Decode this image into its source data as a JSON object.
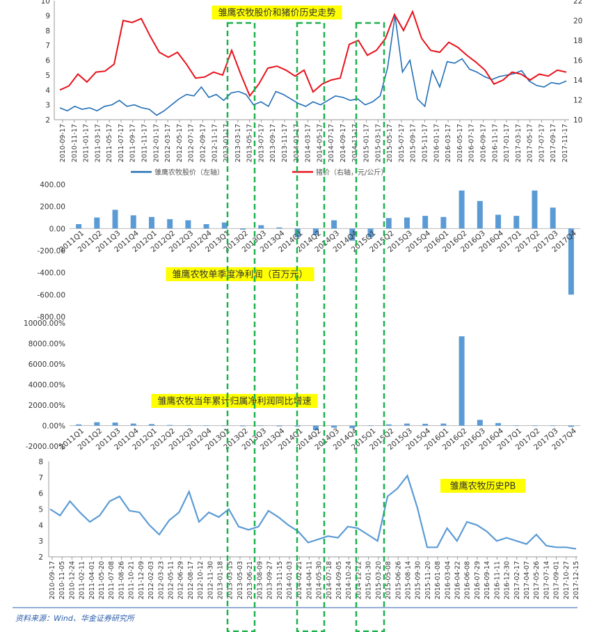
{
  "chart_data": [
    {
      "type": "line",
      "title": "雏鹰农牧股价和猪价历史走势",
      "ylim_left": [
        2,
        10
      ],
      "yticks_left": [
        2,
        3,
        4,
        5,
        6,
        7,
        8,
        9,
        10
      ],
      "ylim_right": [
        10,
        22
      ],
      "yticks_right": [
        10,
        12,
        14,
        16,
        18,
        20,
        22
      ],
      "xtick_labels": [
        "2010-09-17",
        "2010-11-17",
        "2011-01-17",
        "2011-03-17",
        "2011-05-17",
        "2011-07-17",
        "2011-09-17",
        "2011-11-17",
        "2012-01-17",
        "2012-03-17",
        "2012-05-17",
        "2012-07-17",
        "2012-09-17",
        "2012-11-17",
        "2013-01-17",
        "2013-03-17",
        "2013-05-17",
        "2013-07-17",
        "2013-09-17",
        "2013-11-17",
        "2014-01-17",
        "2014-03-17",
        "2014-05-17",
        "2014-07-17",
        "2014-09-17",
        "2014-11-17",
        "2015-01-17",
        "2015-03-17",
        "2015-05-17",
        "2015-07-17",
        "2015-09-17",
        "2015-11-17",
        "2016-01-17",
        "2016-03-17",
        "2016-05-17",
        "2016-07-17",
        "2016-09-17",
        "2016-11-17",
        "2017-01-17",
        "2017-03-17",
        "2017-05-17",
        "2017-07-17",
        "2017-09-17",
        "2017-11-17"
      ],
      "series": [
        {
          "name": "雏鹰农牧股价（左轴）",
          "axis": "left",
          "color": "#1f6db5",
          "values": [
            2.8,
            2.6,
            2.9,
            2.7,
            2.8,
            2.6,
            2.9,
            3.0,
            3.3,
            2.9,
            3.0,
            2.8,
            2.7,
            2.3,
            2.6,
            3.0,
            3.4,
            3.7,
            3.6,
            4.2,
            3.5,
            3.7,
            3.3,
            3.8,
            3.9,
            3.7,
            3.0,
            3.2,
            2.9,
            3.9,
            3.7,
            3.4,
            3.1,
            2.9,
            3.2,
            3.0,
            3.3,
            3.6,
            3.5,
            3.3,
            3.4,
            3.0,
            3.2,
            3.6,
            5.5,
            9.0,
            5.2,
            6.0,
            3.4,
            2.9,
            5.3,
            4.2,
            5.9,
            5.8,
            6.1,
            5.4,
            5.2,
            4.9,
            4.7,
            4.9,
            5.0,
            5.1,
            5.3,
            4.6,
            4.3,
            4.2,
            4.5,
            4.4,
            4.6
          ]
        },
        {
          "name": "猪价（右轴，元/公斤）",
          "axis": "right",
          "color": "#e8111b",
          "values": [
            13.0,
            13.4,
            14.6,
            13.8,
            14.8,
            14.9,
            15.6,
            20.0,
            19.8,
            20.2,
            18.4,
            16.8,
            16.3,
            16.8,
            15.6,
            14.2,
            14.3,
            14.8,
            14.5,
            17.0,
            14.6,
            12.4,
            13.6,
            15.2,
            15.4,
            15.0,
            14.4,
            15.0,
            12.8,
            13.6,
            14.0,
            14.2,
            17.6,
            18.0,
            16.5,
            17.0,
            18.2,
            20.6,
            19.0,
            20.9,
            18.2,
            17.0,
            16.8,
            17.8,
            17.3,
            16.5,
            15.8,
            15.0,
            13.6,
            14.0,
            14.8,
            14.6,
            14.0,
            14.6,
            14.4,
            15.0,
            14.8
          ]
        }
      ]
    },
    {
      "type": "bar",
      "title": "雏鹰农牧单季度净利润（百万元）",
      "ylim": [
        -800,
        400
      ],
      "yticks": [
        "400.00",
        "200.00",
        "0.00",
        "-200.00",
        "-400.00",
        "-600.00",
        "-800.00"
      ],
      "ytick_values": [
        400,
        200,
        0,
        -200,
        -400,
        -600,
        -800
      ],
      "color": "#5b9bd5",
      "categories": [
        "2011Q1",
        "2011Q2",
        "2011Q3",
        "2011Q4",
        "2012Q1",
        "2012Q2",
        "2012Q3",
        "2012Q4",
        "2013Q1",
        "2013Q2",
        "2013Q3",
        "2013Q4",
        "2014Q1",
        "2014Q2",
        "2014Q3",
        "2014Q4",
        "2015Q1",
        "2015Q2",
        "2015Q3",
        "2015Q4",
        "2016Q1",
        "2016Q2",
        "2016Q3",
        "2016Q4",
        "2017Q1",
        "2017Q2",
        "2017Q3",
        "2017Q4"
      ],
      "values": [
        40,
        100,
        170,
        120,
        105,
        85,
        75,
        40,
        55,
        -10,
        30,
        10,
        -80,
        -60,
        75,
        -110,
        -80,
        95,
        100,
        115,
        105,
        345,
        250,
        125,
        115,
        345,
        190,
        -600
      ]
    },
    {
      "type": "bar",
      "title": "雏鹰农牧当年累计归属净利润同比增速",
      "ylim": [
        -2000,
        10000
      ],
      "yticks": [
        "10000.00%",
        "8000.00%",
        "6000.00%",
        "4000.00%",
        "2000.00%",
        "0.00%",
        "-2000.00%"
      ],
      "ytick_values": [
        10000,
        8000,
        6000,
        4000,
        2000,
        0,
        -2000
      ],
      "color": "#5b9bd5",
      "categories": [
        "2011Q1",
        "2011Q2",
        "2011Q3",
        "2011Q4",
        "2012Q1",
        "2012Q2",
        "2012Q3",
        "2012Q4",
        "2013Q1",
        "2013Q2",
        "2013Q3",
        "2013Q4",
        "2014Q1",
        "2014Q2",
        "2014Q3",
        "2014Q4",
        "2015Q1",
        "2015Q2",
        "2015Q3",
        "2015Q4",
        "2016Q1",
        "2016Q2",
        "2016Q3",
        "2016Q4",
        "2017Q1",
        "2017Q2",
        "2017Q3",
        "2017Q4"
      ],
      "values": [
        120,
        330,
        300,
        200,
        150,
        60,
        40,
        20,
        -30,
        -60,
        -40,
        -70,
        -90,
        -450,
        -200,
        -250,
        -40,
        120,
        200,
        180,
        200,
        8700,
        560,
        250,
        0,
        0,
        0,
        -120
      ]
    },
    {
      "type": "line",
      "title": "雏鹰农牧历史PB",
      "ylim": [
        2,
        8
      ],
      "yticks": [
        2,
        3,
        4,
        5,
        6,
        7,
        8
      ],
      "color": "#5b9bd5",
      "xtick_labels": [
        "2010-09-17",
        "2010-11-05",
        "2010-12-24",
        "2011-02-11",
        "2011-04-01",
        "2011-05-20",
        "2011-07-08",
        "2011-08-26",
        "2011-10-21",
        "2011-12-09",
        "2012-02-03",
        "2012-03-23",
        "2012-05-11",
        "2012-06-29",
        "2012-08-17",
        "2012-10-12",
        "2012-11-30",
        "2013-01-18",
        "2013-03-15",
        "2013-05-03",
        "2013-06-21",
        "2013-08-09",
        "2013-09-27",
        "2013-11-15",
        "2014-01-03",
        "2014-02-21",
        "2014-04-11",
        "2014-05-30",
        "2014-07-18",
        "2014-09-05",
        "2014-10-24",
        "2014-12-12",
        "2015-01-30",
        "2015-03-20",
        "2015-05-08",
        "2015-06-26",
        "2015-08-14",
        "2015-09-30",
        "2015-11-20",
        "2016-01-08",
        "2016-03-04",
        "2016-04-22",
        "2016-06-08",
        "2016-07-29",
        "2016-09-14",
        "2016-11-11",
        "2016-12-30",
        "2017-02-17",
        "2017-04-07",
        "2017-05-26",
        "2017-07-14",
        "2017-09-01",
        "2017-10-27",
        "2017-12-15"
      ],
      "values": [
        5.0,
        4.6,
        5.5,
        4.8,
        4.2,
        4.6,
        5.5,
        5.8,
        4.9,
        4.8,
        4.0,
        3.4,
        4.3,
        4.8,
        6.1,
        4.2,
        4.8,
        4.5,
        5.0,
        3.9,
        3.7,
        3.9,
        4.9,
        4.5,
        4.0,
        3.6,
        2.9,
        3.1,
        3.3,
        3.2,
        3.9,
        3.8,
        3.4,
        3.0,
        5.8,
        6.3,
        7.1,
        5.1,
        2.6,
        2.6,
        3.8,
        3.0,
        4.2,
        4.0,
        3.6,
        3.0,
        3.2,
        3.0,
        2.8,
        3.4,
        2.7,
        2.6,
        2.6,
        2.5
      ]
    }
  ],
  "legend": {
    "left_label": "雏鹰农牧股价（左轴）",
    "right_label": "猪价（右轴，元/公斤）"
  },
  "colors": {
    "highlight": "#ffff00",
    "dash": "#1bb14c"
  },
  "source": "资料来源：Wind、华金证券研究所"
}
